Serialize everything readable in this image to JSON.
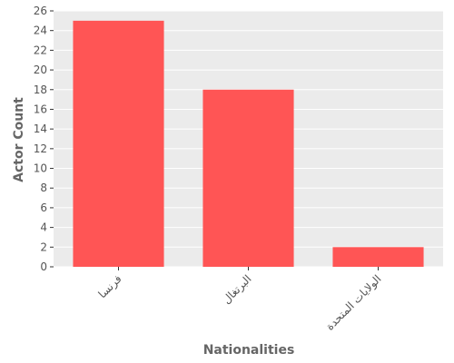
{
  "chart_data": {
    "type": "bar",
    "categories": [
      "فرنسا",
      "البرتغال",
      "الولايات المتحدة"
    ],
    "values": [
      25,
      18,
      2
    ],
    "xlabel": "Nationalities",
    "ylabel": "Actor Count",
    "ylim": [
      0,
      26
    ],
    "yticks": [
      0,
      2,
      4,
      6,
      8,
      10,
      12,
      14,
      16,
      18,
      20,
      22,
      24,
      26
    ],
    "grid": true,
    "bar_color": "#ff5555",
    "panel_background": "#ebebeb",
    "grid_color": "#ffffff"
  }
}
